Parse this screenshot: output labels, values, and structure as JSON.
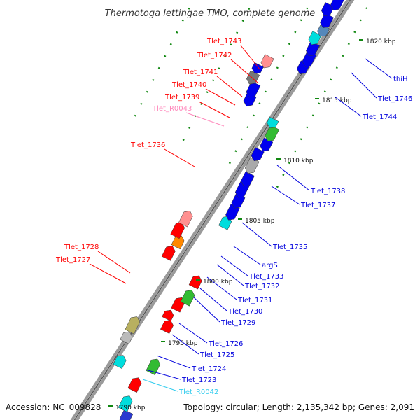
{
  "header": {
    "title": "Thermotoga lettingae TMO, complete genome"
  },
  "footer": {
    "accession": "Accession: NC_009828",
    "topology": "Topology: circular; Length: 2,135,342 bp; Genes: 2,091"
  },
  "colors": {
    "backbone": "#909090",
    "forward_label": "#ff0000",
    "reverse_label": "#0000dd",
    "rna_label": "#ff88bb",
    "rna_label_reverse": "#33ccee",
    "leader_line_dots": "#118811"
  },
  "ticks": [
    "1790 kbp",
    "1795 kbp",
    "1800 kbp",
    "1805 kbp",
    "1810 kbp",
    "1815 kbp",
    "1820 kbp"
  ],
  "features": [
    {
      "id": "1",
      "color": "#0000ee",
      "strand": -1
    },
    {
      "id": "2",
      "color": "#2a3ad0",
      "strand": -1
    },
    {
      "id": "3",
      "color": "#00dddd",
      "strand": 1
    },
    {
      "id": "4",
      "color": "#ff0000",
      "strand": 1
    },
    {
      "id": "5",
      "color": "#00dddd",
      "strand": 1
    },
    {
      "id": "6",
      "color": "#33bb33",
      "strand": 1
    },
    {
      "id": "7",
      "color": "#bbbbbb",
      "strand": 1
    },
    {
      "id": "8",
      "color": "#b8b060",
      "strand": 1
    },
    {
      "id": "9",
      "color": "#ff0000",
      "strand": 1
    },
    {
      "id": "10",
      "color": "#ff0000",
      "strand": 1
    },
    {
      "id": "11",
      "color": "#ff0000",
      "strand": 1
    },
    {
      "id": "12",
      "color": "#33bb33",
      "strand": 1
    },
    {
      "id": "13",
      "color": "#ff0000",
      "strand": 1
    },
    {
      "id": "14",
      "color": "#ff0000",
      "strand": 1
    },
    {
      "id": "15",
      "color": "#ff8800",
      "strand": 1
    },
    {
      "id": "16",
      "color": "#ff0000",
      "strand": 1
    },
    {
      "id": "17",
      "color": "#ff9090",
      "strand": 1
    },
    {
      "id": "18",
      "color": "#00dddd",
      "strand": 1
    },
    {
      "id": "19",
      "color": "#0000ee",
      "strand": -1
    },
    {
      "id": "20",
      "color": "#0000ee",
      "strand": -1
    },
    {
      "id": "21",
      "color": "#0000ee",
      "strand": -1
    },
    {
      "id": "22",
      "color": "#0000ee",
      "strand": -1
    },
    {
      "id": "23",
      "color": "#aaaaaa",
      "strand": -1
    },
    {
      "id": "24",
      "color": "#0000ee",
      "strand": -1
    },
    {
      "id": "25",
      "color": "#0000ee",
      "strand": -1
    },
    {
      "id": "26",
      "color": "#33bb33",
      "strand": -1
    },
    {
      "id": "27",
      "color": "#00dddd",
      "strand": -1
    },
    {
      "id": "28",
      "color": "#0000ee",
      "strand": -1
    },
    {
      "id": "29",
      "color": "#0000ee",
      "strand": -1
    },
    {
      "id": "30",
      "color": "#777777",
      "strand": -1
    },
    {
      "id": "31",
      "color": "#0000ee",
      "strand": -1
    },
    {
      "id": "32",
      "color": "#ff9090",
      "strand": -1
    },
    {
      "id": "33",
      "color": "#0000ee",
      "strand": -1
    },
    {
      "id": "34",
      "color": "#0000ee",
      "strand": -1
    },
    {
      "id": "35",
      "color": "#0000ee",
      "strand": -1
    },
    {
      "id": "36",
      "color": "#00dddd",
      "strand": -1
    },
    {
      "id": "37",
      "color": "#5588bb",
      "strand": -1
    },
    {
      "id": "38",
      "color": "#0000ee",
      "strand": -1
    },
    {
      "id": "39",
      "color": "#0000ee",
      "strand": -1
    },
    {
      "id": "40",
      "color": "#0000ee",
      "strand": -1
    },
    {
      "id": "41",
      "color": "#5588bb",
      "strand": -1
    },
    {
      "id": "42",
      "color": "#00dddd",
      "strand": -1
    },
    {
      "id": "43",
      "color": "#0000ee",
      "strand": -1
    },
    {
      "id": "44",
      "color": "#0000ee",
      "strand": -1
    },
    {
      "id": "45",
      "color": "#00dddd",
      "strand": -1
    },
    {
      "id": "46",
      "color": "#0000ee",
      "strand": -1
    },
    {
      "id": "47",
      "color": "#0000ee",
      "strand": -1
    },
    {
      "id": "48",
      "color": "#00dddd",
      "strand": -1
    }
  ],
  "labels_forward": [
    {
      "text": "Tlet_1743",
      "color": "#ff0000"
    },
    {
      "text": "Tlet_1742",
      "color": "#ff0000"
    },
    {
      "text": "Tlet_1741",
      "color": "#ff0000"
    },
    {
      "text": "Tlet_1740",
      "color": "#ff0000"
    },
    {
      "text": "Tlet_1739",
      "color": "#ff0000"
    },
    {
      "text": "Tlet_R0043",
      "color": "#ff88bb"
    },
    {
      "text": "Tlet_1736",
      "color": "#ff0000"
    },
    {
      "text": "Tlet_1728",
      "color": "#ff0000"
    },
    {
      "text": "Tlet_1727",
      "color": "#ff0000"
    }
  ],
  "labels_reverse": [
    {
      "text": "thiH",
      "color": "#0000dd"
    },
    {
      "text": "Tlet_1746",
      "color": "#0000dd"
    },
    {
      "text": "Tlet_1744",
      "color": "#0000dd"
    },
    {
      "text": "Tlet_1738",
      "color": "#0000dd"
    },
    {
      "text": "Tlet_1737",
      "color": "#0000dd"
    },
    {
      "text": "Tlet_1735",
      "color": "#0000dd"
    },
    {
      "text": "argS",
      "color": "#0000dd"
    },
    {
      "text": "Tlet_1733",
      "color": "#0000dd"
    },
    {
      "text": "Tlet_1732",
      "color": "#0000dd"
    },
    {
      "text": "Tlet_1731",
      "color": "#0000dd"
    },
    {
      "text": "Tlet_1730",
      "color": "#0000dd"
    },
    {
      "text": "Tlet_1729",
      "color": "#0000dd"
    },
    {
      "text": "Tlet_1726",
      "color": "#0000dd"
    },
    {
      "text": "Tlet_1725",
      "color": "#0000dd"
    },
    {
      "text": "Tlet_1724",
      "color": "#0000dd"
    },
    {
      "text": "Tlet_1723",
      "color": "#0000dd"
    },
    {
      "text": "Tlet_R0042",
      "color": "#33ccee"
    }
  ]
}
